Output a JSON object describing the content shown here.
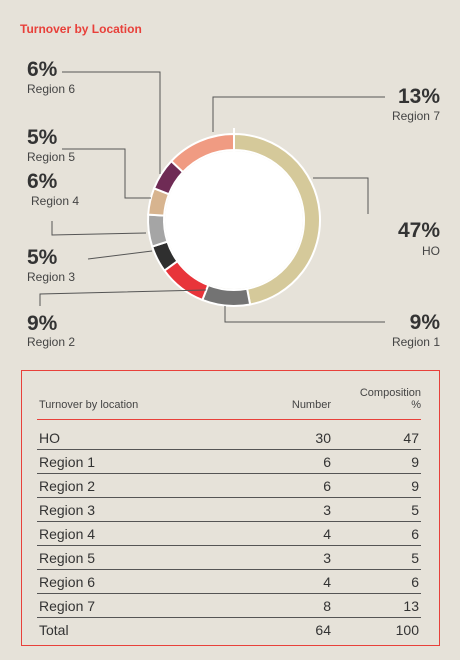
{
  "header": {
    "title": "Turnover by Location"
  },
  "colors": {
    "HO": "#d5c99a",
    "Region 1": "#737373",
    "Region 2": "#e8343a",
    "Region 3": "#2f2f2f",
    "Region 4": "#a5a5a5",
    "Region 5": "#d7b48f",
    "Region 6": "#6f2b55",
    "Region 7": "#f09b82",
    "accent": "#e8403a"
  },
  "chart_data": {
    "type": "pie",
    "style": "donut",
    "title": "Turnover by Location",
    "categories": [
      "HO",
      "Region 1",
      "Region 2",
      "Region 3",
      "Region 4",
      "Region 5",
      "Region 6",
      "Region 7"
    ],
    "values": [
      47,
      9,
      9,
      5,
      6,
      5,
      6,
      13
    ],
    "labels": [
      "47%",
      "9%",
      "9%",
      "5%",
      "6%",
      "5%",
      "6%",
      "13%"
    ]
  },
  "table": {
    "headers": [
      "Turnover by location",
      "Number",
      "Composition %"
    ],
    "header_comp_line1": "Composition",
    "header_comp_line2": "%",
    "rows": [
      {
        "location": "HO",
        "number": "30",
        "composition": "47"
      },
      {
        "location": "Region 1",
        "number": "6",
        "composition": "9"
      },
      {
        "location": "Region 2",
        "number": "6",
        "composition": "9"
      },
      {
        "location": "Region 3",
        "number": "3",
        "composition": "5"
      },
      {
        "location": "Region 4",
        "number": "4",
        "composition": "6"
      },
      {
        "location": "Region 5",
        "number": "3",
        "composition": "5"
      },
      {
        "location": "Region 6",
        "number": "4",
        "composition": "6"
      },
      {
        "location": "Region 7",
        "number": "8",
        "composition": "13"
      },
      {
        "location": "Total",
        "number": "64",
        "composition": "100"
      }
    ]
  }
}
